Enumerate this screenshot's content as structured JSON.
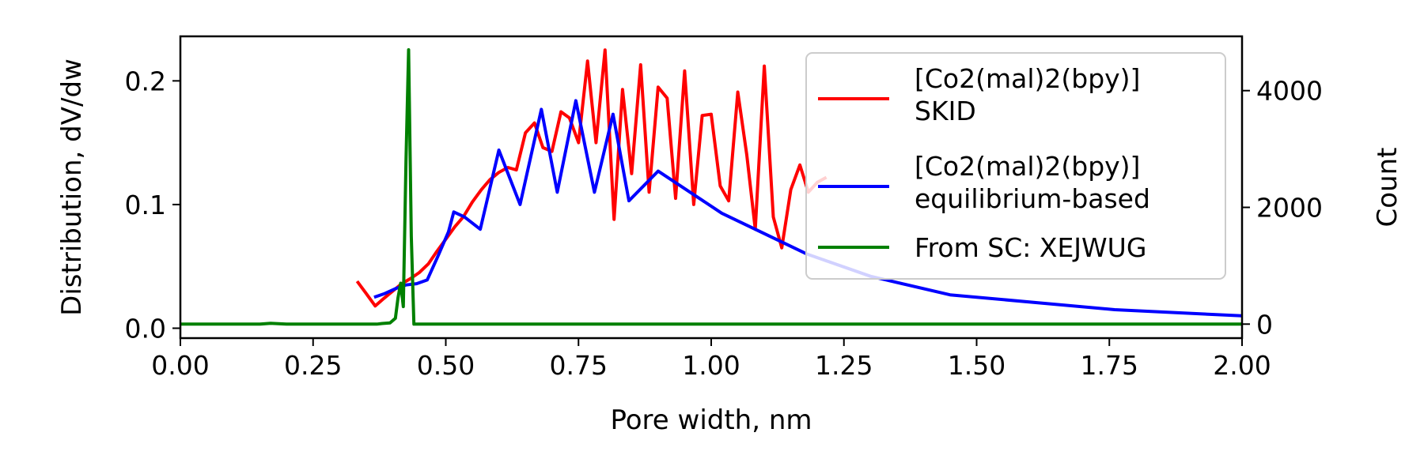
{
  "chart_data": {
    "type": "line",
    "title": "",
    "xlabel": "Pore width, nm",
    "ylabel": "Distribution, dV/dw",
    "y2label": "Count",
    "xlim": [
      0.0,
      2.0
    ],
    "ylim": [
      -0.008,
      0.236
    ],
    "y2lim": [
      -240,
      4930
    ],
    "xticks": [
      0.0,
      0.25,
      0.5,
      0.75,
      1.0,
      1.25,
      1.5,
      1.75,
      2.0
    ],
    "xtick_labels": [
      "0.00",
      "0.25",
      "0.50",
      "0.75",
      "1.00",
      "1.25",
      "1.50",
      "1.75",
      "2.00"
    ],
    "yticks": [
      0.0,
      0.1,
      0.2
    ],
    "ytick_labels": [
      "0.0",
      "0.1",
      "0.2"
    ],
    "y2ticks": [
      0,
      2000,
      4000
    ],
    "y2tick_labels": [
      "0",
      "2000",
      "4000"
    ],
    "legend_position": "upper-right",
    "grid": false,
    "colors": {
      "y2_axis_label": "#008000"
    },
    "series": [
      {
        "name": "[Co2(mal)2(bpy)]\nSKID",
        "legend_lines": [
          "[Co2(mal)2(bpy)]",
          "SKID"
        ],
        "color": "#ff0000",
        "axis": "left",
        "x": [
          0.333,
          0.35,
          0.367,
          0.383,
          0.4,
          0.417,
          0.433,
          0.45,
          0.467,
          0.483,
          0.5,
          0.517,
          0.533,
          0.55,
          0.567,
          0.583,
          0.6,
          0.617,
          0.633,
          0.65,
          0.667,
          0.683,
          0.7,
          0.717,
          0.733,
          0.75,
          0.767,
          0.783,
          0.8,
          0.817,
          0.833,
          0.85,
          0.867,
          0.883,
          0.9,
          0.917,
          0.933,
          0.95,
          0.967,
          0.983,
          1.0,
          1.017,
          1.033,
          1.05,
          1.067,
          1.083,
          1.1,
          1.117,
          1.133,
          1.15,
          1.167,
          1.183,
          1.2,
          1.217
        ],
        "y": [
          0.038,
          0.028,
          0.018,
          0.024,
          0.03,
          0.036,
          0.04,
          0.045,
          0.052,
          0.062,
          0.072,
          0.082,
          0.09,
          0.102,
          0.112,
          0.12,
          0.126,
          0.13,
          0.128,
          0.158,
          0.166,
          0.146,
          0.143,
          0.175,
          0.17,
          0.15,
          0.216,
          0.15,
          0.225,
          0.088,
          0.193,
          0.125,
          0.213,
          0.11,
          0.195,
          0.186,
          0.105,
          0.208,
          0.1,
          0.172,
          0.173,
          0.115,
          0.103,
          0.191,
          0.14,
          0.08,
          0.212,
          0.09,
          0.065,
          0.112,
          0.132,
          0.11,
          0.118,
          0.122
        ]
      },
      {
        "name": "[Co2(mal)2(bpy)]\nequilibrium-based",
        "legend_lines": [
          "[Co2(mal)2(bpy)]",
          "equilibrium-based"
        ],
        "color": "#0000ff",
        "axis": "left",
        "x": [
          0.365,
          0.385,
          0.405,
          0.425,
          0.445,
          0.465,
          0.485,
          0.505,
          0.515,
          0.535,
          0.565,
          0.6,
          0.64,
          0.68,
          0.71,
          0.745,
          0.78,
          0.815,
          0.845,
          0.9,
          1.02,
          1.18,
          1.3,
          1.45,
          1.76,
          2.0
        ],
        "y": [
          0.025,
          0.028,
          0.032,
          0.035,
          0.036,
          0.039,
          0.058,
          0.078,
          0.094,
          0.09,
          0.08,
          0.144,
          0.1,
          0.177,
          0.11,
          0.184,
          0.11,
          0.173,
          0.103,
          0.127,
          0.093,
          0.06,
          0.042,
          0.027,
          0.015,
          0.01
        ]
      },
      {
        "name": "From SC: XEJWUG",
        "legend_lines": [
          "From SC: XEJWUG"
        ],
        "color": "#008000",
        "axis": "right",
        "x": [
          0.0,
          0.15,
          0.17,
          0.2,
          0.3,
          0.35,
          0.37,
          0.38,
          0.395,
          0.405,
          0.41,
          0.415,
          0.42,
          0.425,
          0.43,
          0.435,
          0.44,
          0.445,
          0.5,
          1.0,
          1.5,
          2.0
        ],
        "y": [
          0,
          0,
          15,
          0,
          0,
          0,
          0,
          10,
          20,
          100,
          450,
          700,
          300,
          2800,
          4700,
          1500,
          0,
          0,
          0,
          0,
          0,
          0
        ]
      }
    ]
  }
}
